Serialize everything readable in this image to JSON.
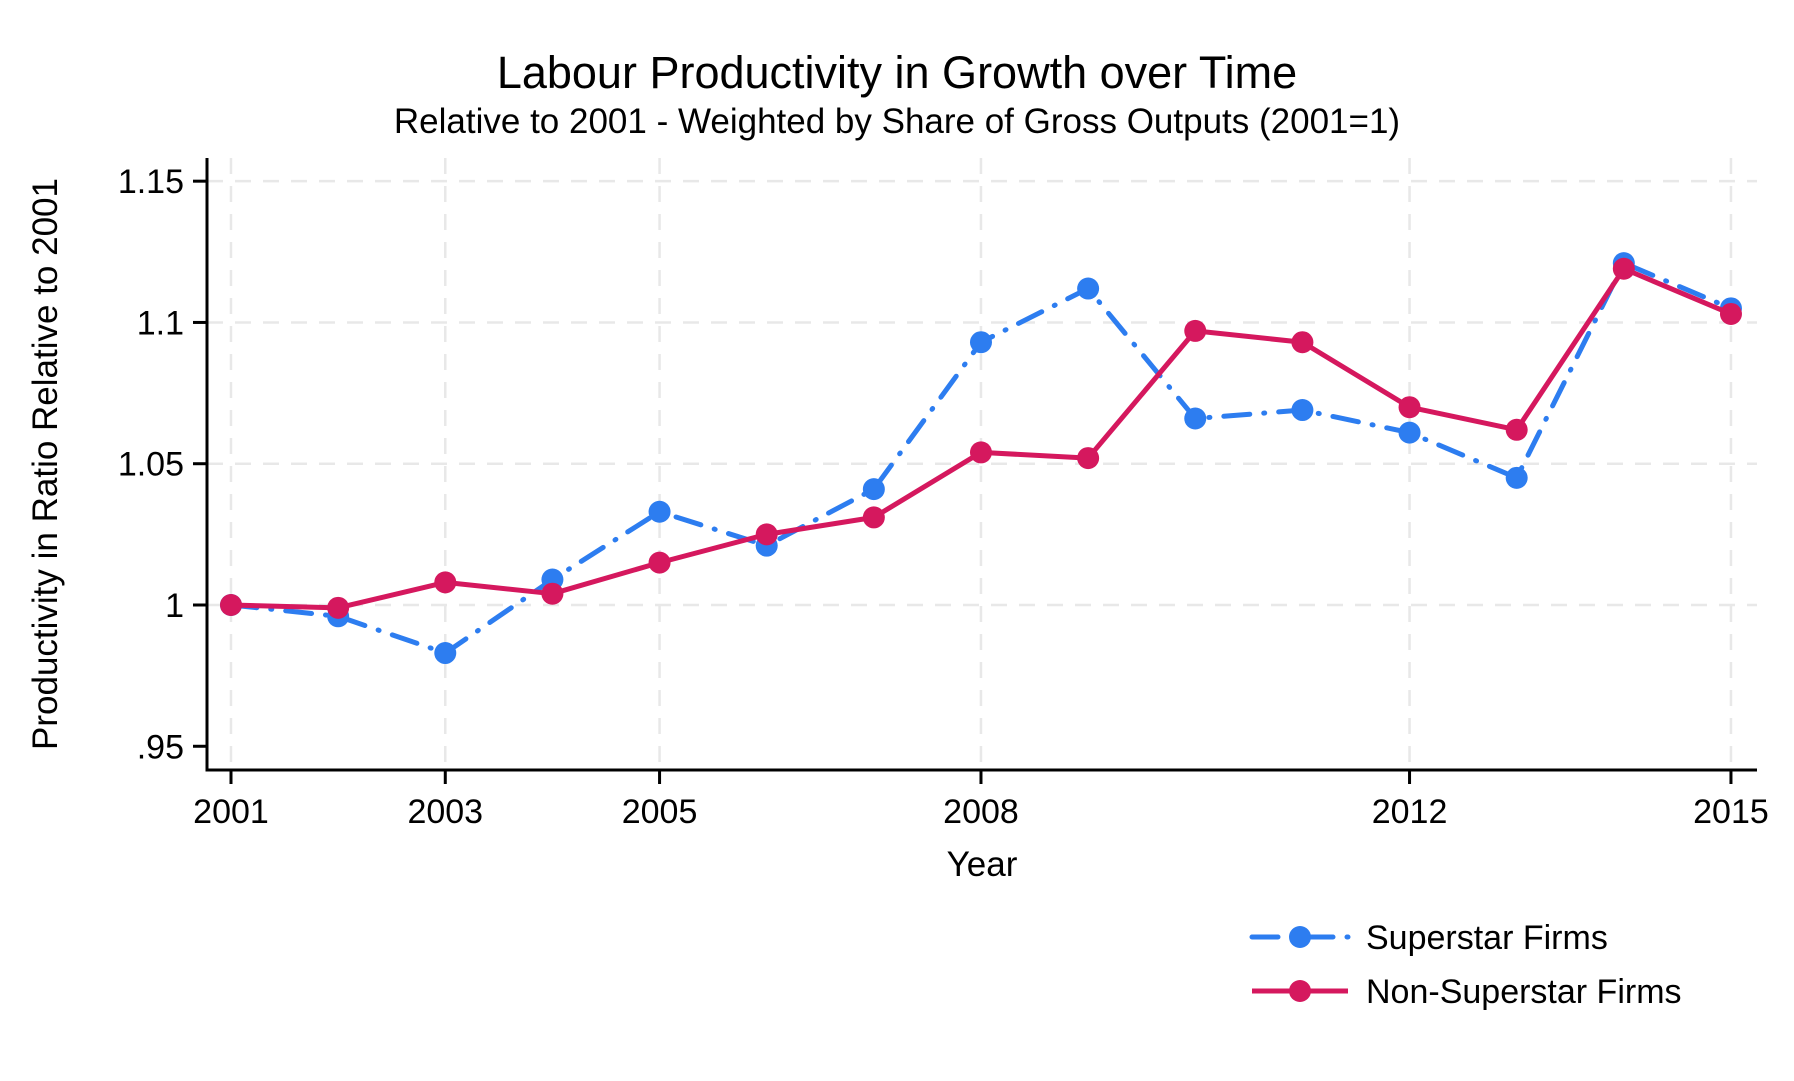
{
  "colors": {
    "superstar": "#2D7DF0",
    "non_superstar": "#D5185E",
    "grid": "#E8E8E8",
    "axis": "#000000",
    "text": "#000000",
    "background": "#FFFFFF"
  },
  "chart_data": {
    "type": "line",
    "title": "Labour Productivity in Growth over Time",
    "subtitle": "Relative to 2001 - Weighted by Share of Gross Outputs (2001=1)",
    "xlabel": "Year",
    "ylabel": "Productivity in Ratio Relative to 2001",
    "x": [
      2001,
      2002,
      2003,
      2004,
      2005,
      2006,
      2007,
      2008,
      2009,
      2010,
      2011,
      2012,
      2013,
      2014,
      2015
    ],
    "series": [
      {
        "name": "Superstar Firms",
        "color_key": "superstar",
        "line_style": "dash-dot",
        "marker": "circle",
        "values": [
          1.0,
          0.996,
          0.983,
          1.009,
          1.033,
          1.021,
          1.041,
          1.093,
          1.112,
          1.066,
          1.069,
          1.061,
          1.045,
          1.121,
          1.105
        ]
      },
      {
        "name": "Non-Superstar Firms",
        "color_key": "non_superstar",
        "line_style": "solid",
        "marker": "circle",
        "values": [
          1.0,
          0.999,
          1.008,
          1.004,
          1.015,
          1.025,
          1.031,
          1.054,
          1.052,
          1.097,
          1.093,
          1.07,
          1.062,
          1.119,
          1.103
        ]
      }
    ],
    "xlim": [
      2000.776,
      2015.243
    ],
    "ylim": [
      0.9416,
      1.1582
    ],
    "x_ticks": [
      {
        "value": 2001,
        "label": "2001"
      },
      {
        "value": 2003,
        "label": "2003"
      },
      {
        "value": 2005,
        "label": "2005"
      },
      {
        "value": 2008,
        "label": "2008"
      },
      {
        "value": 2012,
        "label": "2012"
      },
      {
        "value": 2015,
        "label": "2015"
      }
    ],
    "y_ticks": [
      {
        "value": 0.95,
        "label": ".95",
        "gridline": false
      },
      {
        "value": 1,
        "label": "1",
        "gridline": true
      },
      {
        "value": 1.05,
        "label": "1.05",
        "gridline": true
      },
      {
        "value": 1.1,
        "label": "1.1",
        "gridline": true
      },
      {
        "value": 1.15,
        "label": "1.15",
        "gridline": true
      }
    ],
    "grid": true,
    "legend_position": "bottom-right"
  }
}
